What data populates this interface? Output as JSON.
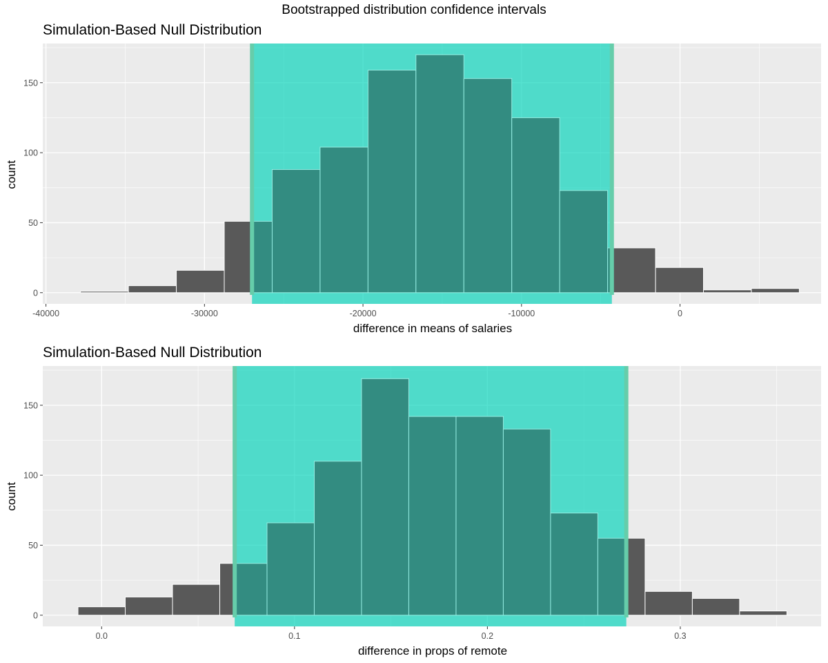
{
  "suptitle": "Bootstrapped distribution confidence intervals",
  "colors": {
    "panel_bg": "#ebebeb",
    "grid": "#ffffff",
    "bar_fill": "#595959",
    "bar_stroke": "#ffffff",
    "ci_shade": "#00d4bb",
    "ci_line": "#66cdaa"
  },
  "chart_data": [
    {
      "type": "bar",
      "title": "Simulation-Based Null Distribution",
      "xlabel": "difference in means of salaries",
      "ylabel": "count",
      "xlim": [
        -40200,
        8900
      ],
      "ylim": [
        -8,
        178
      ],
      "x_ticks": [
        -40000,
        -30000,
        -20000,
        -10000,
        0
      ],
      "x_tick_labels": [
        "-40000",
        "-30000",
        "-20000",
        "-10000",
        "0"
      ],
      "y_ticks": [
        0,
        50,
        100,
        150
      ],
      "y_tick_labels": [
        "0",
        "50",
        "100",
        "150"
      ],
      "grid": true,
      "bin_width": 3023,
      "bin_centers": [
        -36309,
        -33286,
        -30263,
        -27240,
        -24217,
        -21194,
        -18171,
        -15148,
        -12125,
        -9102,
        -6079,
        -3056,
        -33,
        2990,
        6013
      ],
      "counts": [
        1,
        5,
        16,
        51,
        88,
        104,
        159,
        170,
        153,
        125,
        73,
        32,
        18,
        2,
        3
      ],
      "ci": [
        -27000,
        -4300
      ]
    },
    {
      "type": "bar",
      "title": "Simulation-Based Null Distribution",
      "xlabel": "difference in props of remote",
      "ylabel": "count",
      "xlim": [
        -0.0305,
        0.373
      ],
      "ylim": [
        -8,
        178
      ],
      "x_ticks": [
        0.0,
        0.1,
        0.2,
        0.3
      ],
      "x_tick_labels": [
        "0.0",
        "0.1",
        "0.2",
        "0.3"
      ],
      "y_ticks": [
        0,
        50,
        100,
        150
      ],
      "y_tick_labels": [
        "0",
        "50",
        "100",
        "150"
      ],
      "grid": true,
      "bin_width": 0.0245,
      "bin_centers": [
        0.0,
        0.0245,
        0.049,
        0.0735,
        0.098,
        0.1225,
        0.147,
        0.1715,
        0.196,
        0.2205,
        0.245,
        0.2695,
        0.294,
        0.3185,
        0.343
      ],
      "counts": [
        6,
        13,
        22,
        37,
        66,
        110,
        169,
        142,
        142,
        133,
        73,
        55,
        17,
        12,
        3
      ],
      "ci": [
        0.069,
        0.272
      ]
    }
  ]
}
